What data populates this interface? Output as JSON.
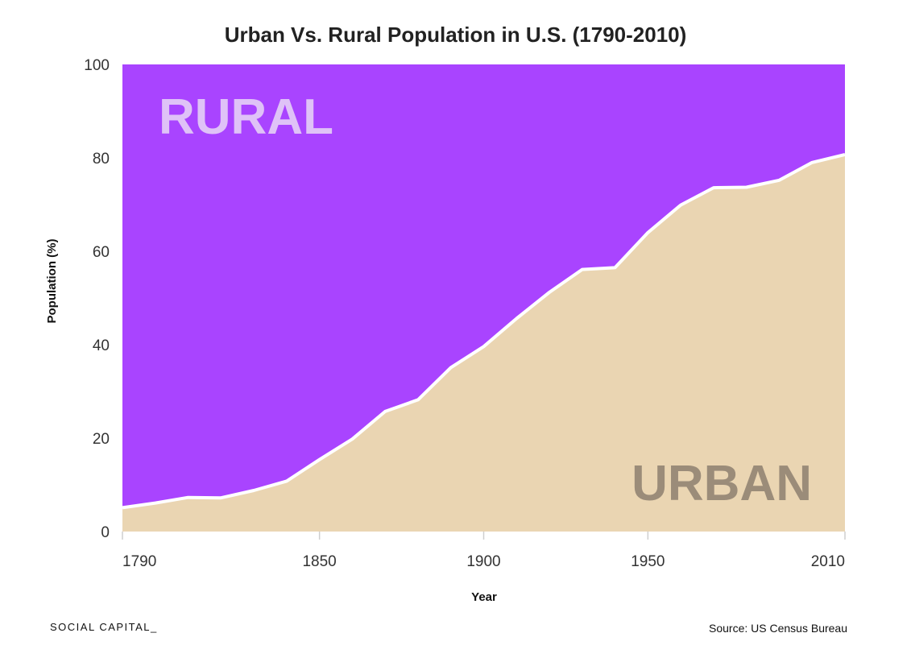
{
  "chart_data": {
    "type": "area",
    "title": "Urban Vs. Rural Population in U.S. (1790-2010)",
    "xlabel": "Year",
    "ylabel": "Population (%)",
    "xlim": [
      1790,
      2010
    ],
    "ylim": [
      0,
      100
    ],
    "x_ticks": [
      "1790",
      "1850",
      "1900",
      "1950",
      "2010"
    ],
    "y_ticks": [
      "0",
      "20",
      "40",
      "60",
      "80",
      "100"
    ],
    "x_ticks_values": [
      1790,
      1850,
      1900,
      1950,
      2010
    ],
    "y_ticks_values": [
      0,
      20,
      40,
      60,
      80,
      100
    ],
    "series": [
      {
        "name": "URBAN",
        "x": [
          1790,
          1800,
          1810,
          1820,
          1830,
          1840,
          1850,
          1860,
          1870,
          1880,
          1890,
          1900,
          1910,
          1920,
          1930,
          1940,
          1950,
          1960,
          1970,
          1980,
          1990,
          2000,
          2010
        ],
        "values": [
          5.1,
          6.1,
          7.3,
          7.2,
          8.8,
          10.8,
          15.4,
          19.8,
          25.7,
          28.2,
          35.1,
          39.6,
          45.6,
          51.2,
          56.1,
          56.5,
          64.0,
          69.9,
          73.6,
          73.7,
          75.2,
          79.0,
          80.7
        ],
        "color": "#ead5b2"
      },
      {
        "name": "RURAL",
        "color": "#a944ff"
      }
    ],
    "annotations": [
      {
        "text": "RURAL",
        "color": "#dfc2f7"
      },
      {
        "text": "URBAN",
        "color": "#9b8c79"
      }
    ]
  },
  "footer": {
    "brand": "SOCIAL CAPITAL_",
    "source": "Source: US Census Bureau"
  }
}
